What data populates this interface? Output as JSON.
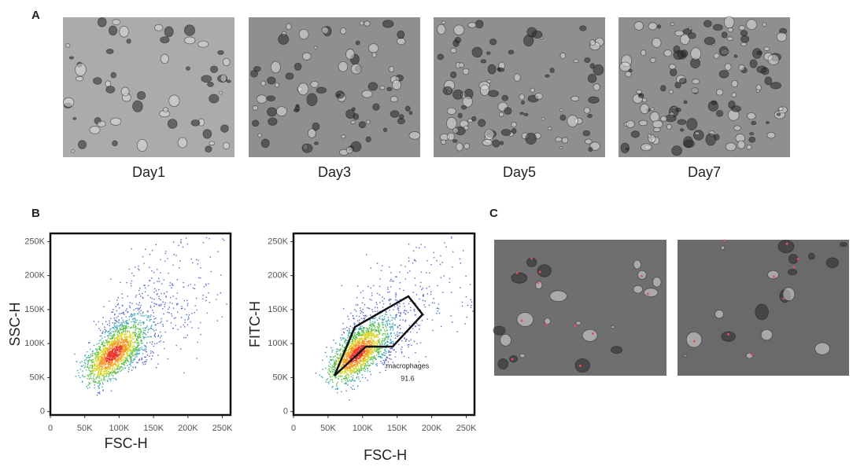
{
  "panel_a": {
    "label": "A",
    "images": [
      {
        "caption": "Day1"
      },
      {
        "caption": "Day3"
      },
      {
        "caption": "Day5"
      },
      {
        "caption": "Day7"
      }
    ]
  },
  "panel_b": {
    "label": "B",
    "plots": [
      {
        "x_label": "FSC-H",
        "y_label": "SSC-H",
        "xlim": [
          0,
          262000
        ],
        "ylim": [
          -5000,
          262000
        ],
        "xticks": [
          0,
          {
            "value": 50000,
            "label": "50K"
          },
          {
            "value": 100000,
            "label": "100K"
          },
          {
            "value": 150000,
            "label": "150K"
          },
          {
            "value": 200000,
            "label": "200K"
          },
          {
            "value": 250000,
            "label": "250K"
          }
        ],
        "yticks": [
          0,
          {
            "value": 50000,
            "label": "50K"
          },
          {
            "value": 100000,
            "label": "100K"
          },
          {
            "value": 150000,
            "label": "150K"
          },
          {
            "value": 200000,
            "label": "200K"
          },
          {
            "value": 250000,
            "label": "250K"
          }
        ]
      },
      {
        "x_label": "FSC-H",
        "y_label": "FITC-H",
        "xlim": [
          0,
          262000
        ],
        "ylim": [
          -5000,
          262000
        ],
        "xticks": [
          0,
          {
            "value": 50000,
            "label": "50K"
          },
          {
            "value": 100000,
            "label": "100K"
          },
          {
            "value": 150000,
            "label": "150K"
          },
          {
            "value": 200000,
            "label": "200K"
          },
          {
            "value": 250000,
            "label": "250K"
          }
        ],
        "yticks": [
          0,
          {
            "value": 50000,
            "label": "50K"
          },
          {
            "value": 100000,
            "label": "100K"
          },
          {
            "value": 150000,
            "label": "150K"
          },
          {
            "value": 200000,
            "label": "200K"
          },
          {
            "value": 250000,
            "label": "250K"
          }
        ],
        "gate": {
          "name": "macrophages",
          "value": 91.6
        }
      }
    ]
  },
  "panel_c": {
    "label": "C"
  }
}
